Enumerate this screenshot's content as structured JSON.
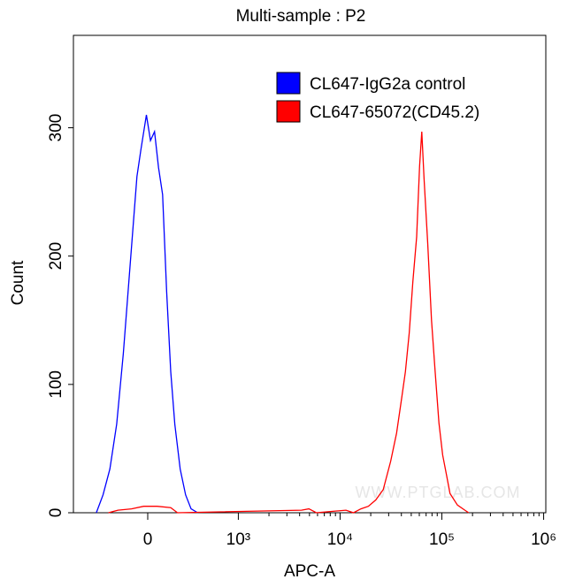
{
  "chart_data": {
    "type": "line",
    "title": "Multi-sample : P2",
    "x_label": "APC-A",
    "y_label": "Count",
    "xscale": "biexponential",
    "xlim": [
      -820,
      1050000
    ],
    "xticks": [
      0,
      {
        "value": 1000,
        "label": "10³"
      },
      {
        "value": 10000,
        "label": "10⁴"
      },
      {
        "value": 100000,
        "label": "10⁵"
      },
      {
        "value": 1000000,
        "label": "10⁶"
      }
    ],
    "ylim": [
      0,
      372
    ],
    "yticks": [
      0,
      100,
      200,
      300
    ],
    "legend": "top-right",
    "watermark": "WWW.PTGLAB.COM",
    "series": [
      {
        "name": "CL647-IgG2a control",
        "color": "#0000ff",
        "x": [
          -567,
          -493,
          -418,
          -343,
          -269,
          -194,
          -119,
          -75,
          -15,
          30,
          75,
          119,
          164,
          209,
          254,
          299,
          358,
          418,
          478,
          552
        ],
        "values": [
          0,
          14,
          34,
          69,
          124,
          193,
          262,
          283,
          310,
          290,
          297,
          269,
          248,
          172,
          110,
          69,
          34,
          14,
          3,
          0
        ]
      },
      {
        "name": "CL647-65072(CD45.2)",
        "color": "#ff0000",
        "x": [
          -433,
          -328,
          -179,
          -45,
          104,
          254,
          328,
          4170,
          4940,
          5840,
          11430,
          13530,
          16010,
          18940,
          22400,
          26500,
          31350,
          35880,
          40350,
          43850,
          47730,
          51880,
          56490,
          60390,
          63530,
          66830,
          72610,
          79070,
          85950,
          93540,
          101700,
          110700,
          120300,
          142300,
          168300,
          183200
        ],
        "values": [
          0,
          2,
          3,
          5,
          5,
          4,
          0,
          2,
          3,
          0,
          2,
          0,
          3,
          5,
          10,
          18,
          40,
          62,
          90,
          110,
          140,
          180,
          215,
          270,
          297,
          260,
          210,
          150,
          110,
          70,
          45,
          30,
          15,
          6,
          2,
          0
        ]
      }
    ]
  }
}
